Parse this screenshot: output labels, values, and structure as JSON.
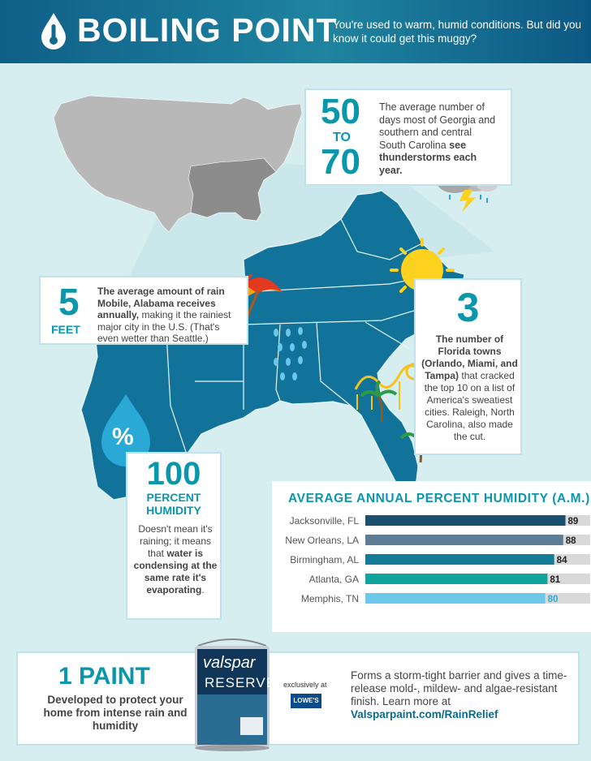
{
  "header": {
    "title": "BOILING POINT",
    "subtitle": "You're used to warm, humid conditions. But did you know it could get this muggy?"
  },
  "thunder": {
    "range_from": "50",
    "range_word": "TO",
    "range_to": "70",
    "text_plain": "The average number of days most of Georgia and southern and central South Carolina",
    "text_bold": "see thunderstorms each year."
  },
  "rain": {
    "number": "5",
    "unit": "FEET",
    "text_bold": "The average amount of rain Mobile, Alabama receives annually,",
    "text_plain": "making it the rainiest major city in the U.S. (That's even wetter than Seattle.)"
  },
  "florida": {
    "number": "3",
    "text_bold": "The number of Florida towns (Orlando, Miami, and Tampa)",
    "text_plain": "that cracked the top 10 on a list of America's sweatiest cities. Raleigh, North Carolina, also made the cut."
  },
  "humidity": {
    "drop_symbol": "%",
    "number": "100",
    "label_line1": "PERCENT",
    "label_line2": "HUMIDITY",
    "text_plain1": "Doesn't mean it's raining; it means that",
    "text_bold": "water is condensing at the same rate it's evaporating",
    "text_plain2": "."
  },
  "chart_data": {
    "type": "bar",
    "title": "AVERAGE ANNUAL PERCENT HUMIDITY (A.M.)",
    "categories": [
      "Jacksonville, FL",
      "New Orleans, LA",
      "Birmingham, AL",
      "Atlanta, GA",
      "Memphis, TN"
    ],
    "values": [
      89,
      88,
      84,
      81,
      80
    ],
    "xlim": [
      0,
      100
    ],
    "bar_colors": [
      "#1b4f6e",
      "#5d7d96",
      "#147c96",
      "#0fa49c",
      "#6cc7ea"
    ],
    "label_colors": [
      "#222222",
      "#222222",
      "#222222",
      "#222222",
      "#2aa9d6"
    ],
    "track_color": "#d9d9d9",
    "grid": false
  },
  "promo": {
    "headline": "1 PAINT",
    "subline": "Developed to protect your home from intense rain and humidity",
    "exclusive": "exclusively at",
    "retailer": "LOWE'S",
    "body": "Forms a storm-tight barrier and gives a time-release mold-, mildew- and algae-resistant finish. Learn more at",
    "link": "Valsparpaint.com/RainRelief",
    "can_brand": "valspar",
    "can_line": "RESERVE"
  },
  "colors": {
    "map_south": "#12739a",
    "map_rest": "#b8b8b8",
    "accent": "#0a97ac",
    "background": "#d6eef0"
  }
}
